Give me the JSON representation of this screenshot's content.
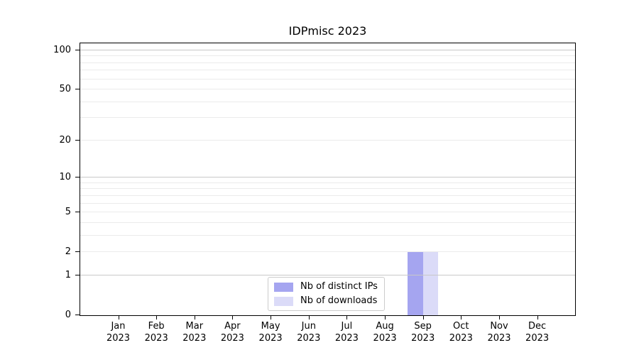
{
  "title": "IDPmisc 2023",
  "chart_data": {
    "type": "bar",
    "title": "IDPmisc 2023",
    "categories": [
      "Jan 2023",
      "Feb 2023",
      "Mar 2023",
      "Apr 2023",
      "May 2023",
      "Jun 2023",
      "Jul 2023",
      "Aug 2023",
      "Sep 2023",
      "Oct 2023",
      "Nov 2023",
      "Dec 2023"
    ],
    "series": [
      {
        "name": "Nb of distinct IPs",
        "color": "#a5a5f0",
        "values": [
          0,
          0,
          0,
          0,
          0,
          0,
          0,
          0,
          2,
          0,
          0,
          0
        ]
      },
      {
        "name": "Nb of downloads",
        "color": "#dbdbf8",
        "values": [
          0,
          0,
          0,
          0,
          0,
          0,
          0,
          0,
          2,
          0,
          0,
          0
        ]
      }
    ],
    "xlabel": "",
    "ylabel": "",
    "yscale": "log1p",
    "ylim": [
      0,
      112
    ],
    "y_tick_values": [
      0,
      1,
      2,
      5,
      10,
      20,
      50,
      100
    ],
    "y_tick_labels": [
      "0",
      "1",
      "2",
      "5",
      "10",
      "20",
      "50",
      "100"
    ],
    "y_major_gridlines": [
      1,
      10,
      100
    ],
    "y_minor_gridlines": [
      2,
      3,
      4,
      5,
      6,
      7,
      8,
      9,
      20,
      30,
      40,
      50,
      60,
      70,
      80,
      90
    ],
    "grid": true,
    "legend_position": "lower center inside",
    "colors": {
      "spine": "#000000",
      "major_grid": "#c8c8c8",
      "minor_grid": "#ebebeb",
      "background": "#ffffff"
    }
  }
}
